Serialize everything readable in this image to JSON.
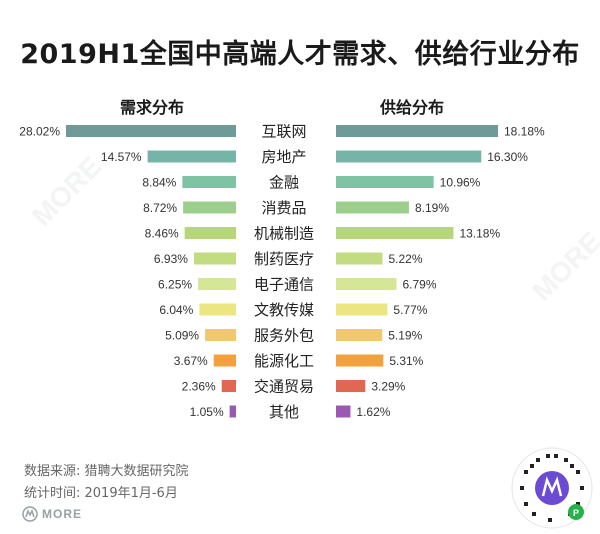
{
  "title": "2019H1全国中高端人才需求、供给行业分布",
  "demand_title": "需求分布",
  "supply_title": "供给分布",
  "source": "数据来源: 猎聘大数据研究院",
  "period": "统计时间: 2019年1月-6月",
  "watermark_text": "MORE",
  "colors": {
    "bars": [
      "#6e9a98",
      "#76b4a7",
      "#7ec4a4",
      "#9ccf8c",
      "#b6d67a",
      "#c2dc82",
      "#d6e697",
      "#ece680",
      "#f0c871",
      "#f2a13e",
      "#e06752",
      "#9a5ab1"
    ]
  },
  "chart_data": {
    "type": "bar",
    "categories": [
      "互联网",
      "房地产",
      "金融",
      "消费品",
      "机械制造",
      "制药医疗",
      "电子通信",
      "文教传媒",
      "服务外包",
      "能源化工",
      "交通贸易",
      "其他"
    ],
    "series": [
      {
        "name": "需求分布",
        "values": [
          28.02,
          14.57,
          8.84,
          8.72,
          8.46,
          6.93,
          6.25,
          6.04,
          5.09,
          3.67,
          2.36,
          1.05
        ],
        "labels": [
          "28.02%",
          "14.57%",
          "8.84%",
          "8.72%",
          "8.46%",
          "6.93%",
          "6.25%",
          "6.04%",
          "5.09%",
          "3.67%",
          "2.36%",
          "1.05%"
        ]
      },
      {
        "name": "供给分布",
        "values": [
          18.18,
          16.3,
          10.96,
          8.19,
          13.18,
          5.22,
          6.79,
          5.77,
          5.19,
          5.31,
          3.29,
          1.62
        ],
        "labels": [
          "18.18%",
          "16.30%",
          "10.96%",
          "8.19%",
          "13.18%",
          "5.22%",
          "6.79%",
          "5.77%",
          "5.19%",
          "5.31%",
          "3.29%",
          "1.62%"
        ]
      }
    ]
  }
}
